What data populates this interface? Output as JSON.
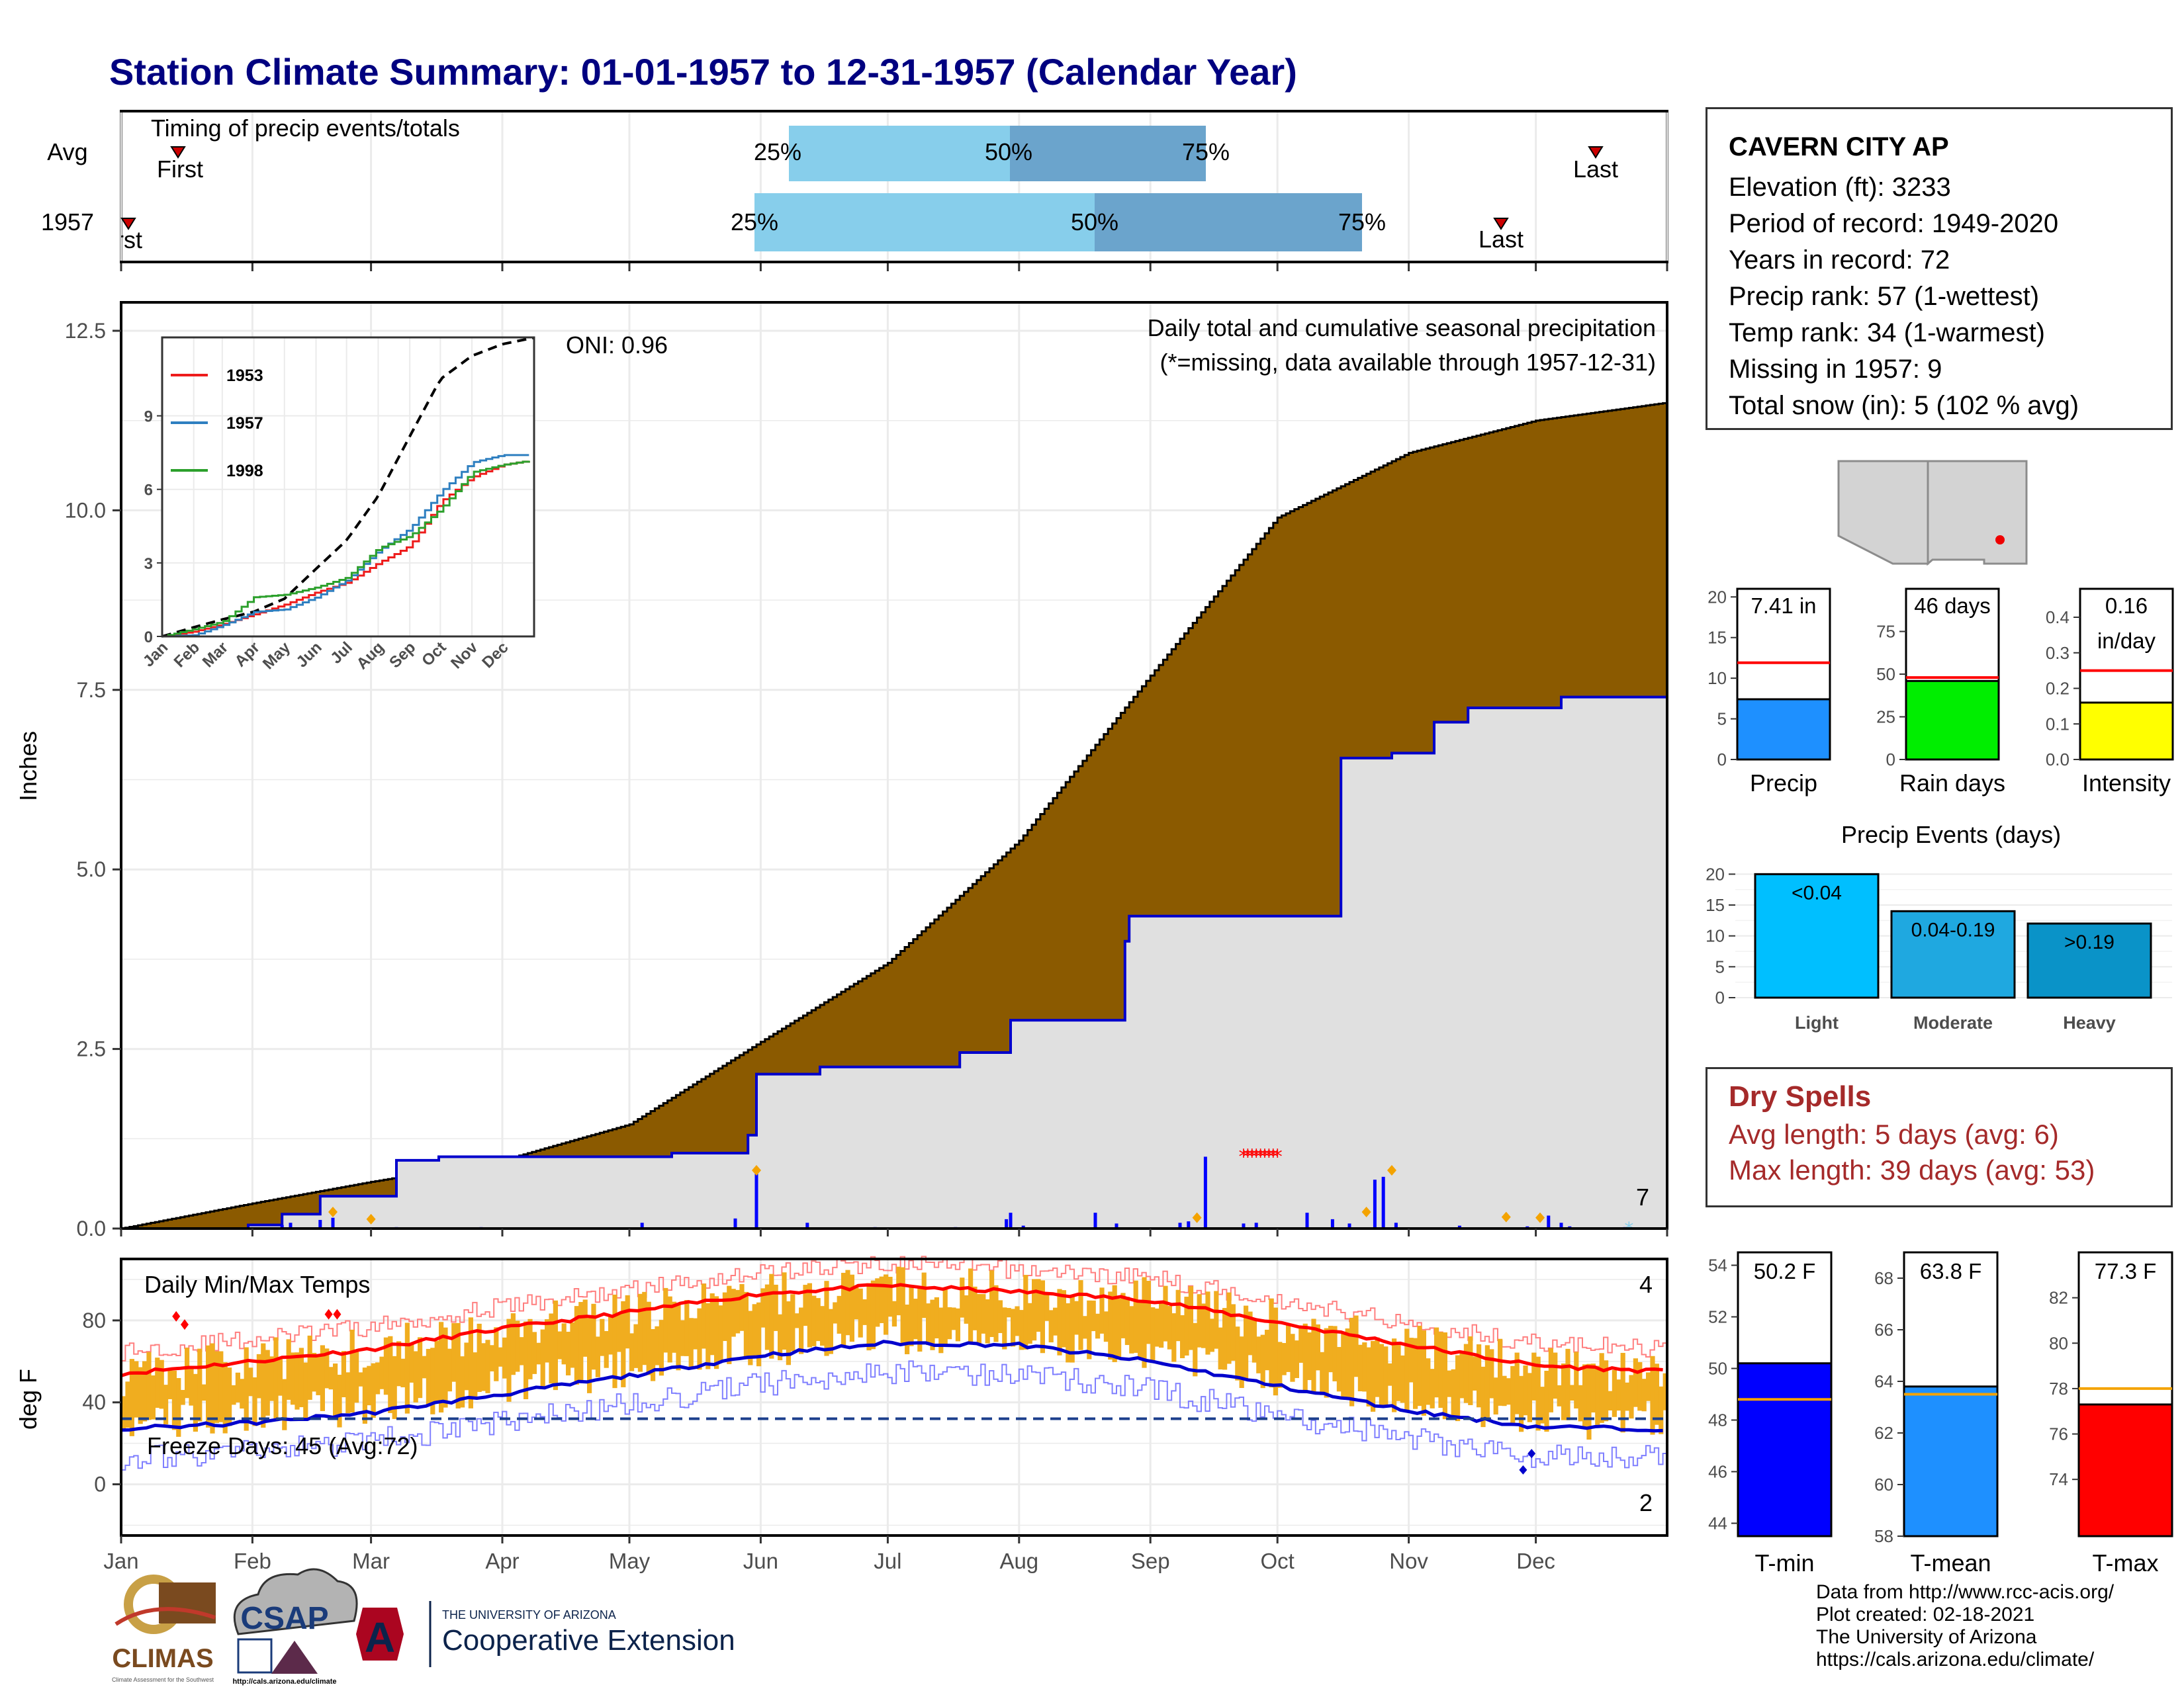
{
  "title": "Station Climate Summary: 01-01-1957 to 12-31-1957 (Calendar Year)",
  "station": {
    "name": "CAVERN CITY AP",
    "lines": [
      "Elevation (ft): 3233",
      "Period of record: 1949-2020",
      "Years in record: 72",
      "Precip rank: 57 (1-wettest)",
      "Temp rank: 34 (1-warmest)",
      "Missing in 1957: 9",
      "Total snow (in): 5 (102 % avg)"
    ]
  },
  "timing_panel": {
    "label": "Timing of precip events/totals",
    "rows": [
      "Avg",
      "1957"
    ],
    "avg": {
      "first": "First",
      "last": "Last",
      "p25": "25%",
      "p50": "50%",
      "p75": "75%"
    },
    "y1957": {
      "first": "First",
      "last": "Last",
      "p25": "25%",
      "p50": "50%",
      "p75": "75%"
    },
    "colors": {
      "light": "#87ceeb",
      "dark": "#6ba4cc",
      "marker": "#cc0000"
    }
  },
  "precip_panel": {
    "ylabel": "Inches",
    "yticks": [
      "0.0",
      "2.5",
      "5.0",
      "7.5",
      "10.0",
      "12.5"
    ],
    "annotation": "Daily total and cumulative seasonal precipitation",
    "missing_note": "(*=missing, data available through 1957-12-31)",
    "oni": "ONI: 0.96",
    "corner_count": "7",
    "colors": {
      "avg_fill": "#8b5a00",
      "year_fill": "#e0e0e0",
      "line": "#0000cc"
    }
  },
  "inset": {
    "yticks": [
      "0",
      "3",
      "6",
      "9"
    ],
    "months": [
      "Jan",
      "Feb",
      "Mar",
      "Apr",
      "May",
      "Jun",
      "Jul",
      "Aug",
      "Sep",
      "Oct",
      "Nov",
      "Dec"
    ],
    "legend": [
      {
        "name": "1953",
        "color": "#ee1c1c"
      },
      {
        "name": "1957",
        "color": "#2e7fc0"
      },
      {
        "name": "1998",
        "color": "#2ca02c"
      }
    ]
  },
  "temp_panel": {
    "ylabel": "deg F",
    "title": "Daily Min/Max Temps",
    "yticks": [
      "0",
      "40",
      "80"
    ],
    "freeze_label": "Freeze Days: 45 (Avg:72)",
    "top_count": "4",
    "bottom_count": "2",
    "months": [
      "Jan",
      "Feb",
      "Mar",
      "Apr",
      "May",
      "Jun",
      "Jul",
      "Aug",
      "Sep",
      "Oct",
      "Nov",
      "Dec"
    ]
  },
  "map": {
    "region": "Arizona / New Mexico"
  },
  "bars_top": [
    {
      "label": "Precip",
      "value_text": "7.41 in",
      "value": 7.41,
      "avg": 11.9,
      "ymax": 21,
      "ticks": [
        "0",
        "5",
        "10",
        "15",
        "20"
      ],
      "color": "#1e90ff"
    },
    {
      "label": "Rain days",
      "value_text": "46 days",
      "value": 46,
      "avg": 48,
      "ymax": 100,
      "ticks": [
        "0",
        "25",
        "50",
        "75"
      ],
      "color": "#00ee00"
    },
    {
      "label": "Intensity",
      "value_text": "0.16",
      "value_text2": "in/day",
      "value": 0.16,
      "avg": 0.25,
      "ymax": 0.48,
      "ticks": [
        "0.0",
        "0.1",
        "0.2",
        "0.3",
        "0.4"
      ],
      "color": "#ffff00"
    }
  ],
  "precip_events": {
    "title": "Precip Events (days)",
    "yticks": [
      "0",
      "5",
      "10",
      "15",
      "20"
    ],
    "bars": [
      {
        "label": "Light",
        "text": "<0.04",
        "value": 20,
        "color": "#00bfff"
      },
      {
        "label": "Moderate",
        "text": "0.04-0.19",
        "value": 14,
        "color": "#1fa8e0"
      },
      {
        "label": "Heavy",
        "text": ">0.19",
        "value": 12,
        "color": "#0a93c8"
      }
    ]
  },
  "dry_spells": {
    "title": "Dry Spells",
    "avg": "Avg length: 5 days (avg: 6)",
    "max": "Max length: 39 days (avg: 53)"
  },
  "temp_bars": [
    {
      "label": "T-min",
      "value_text": "50.2 F",
      "value": 50.2,
      "avg": 48.8,
      "ymin": 43.5,
      "ymax": 54.5,
      "ticks": [
        "44",
        "46",
        "48",
        "50",
        "52",
        "54"
      ],
      "color": "#0000ff"
    },
    {
      "label": "T-mean",
      "value_text": "63.8 F",
      "value": 63.8,
      "avg": 63.5,
      "ymin": 58,
      "ymax": 69,
      "ticks": [
        "58",
        "60",
        "62",
        "64",
        "66",
        "68"
      ],
      "color": "#1e90ff"
    },
    {
      "label": "T-max",
      "value_text": "77.3 F",
      "value": 77.3,
      "avg": 78,
      "ymin": 71.5,
      "ymax": 84,
      "ticks": [
        "74",
        "76",
        "78",
        "80",
        "82"
      ],
      "color": "#ff0000"
    }
  ],
  "footer": [
    "Data from http://www.rcc-acis.org/",
    "Plot created: 02-18-2021",
    "The University of Arizona",
    "https://cals.arizona.edu/climate/"
  ],
  "logos": {
    "climas": "CLIMAS",
    "climas_sub": "Climate Assessment for the Southwest",
    "csap": "CSAP",
    "csap_url": "http://cals.arizona.edu/climate",
    "ua_top": "THE UNIVERSITY OF ARIZONA",
    "ua_bottom": "Cooperative Extension"
  },
  "chart_data": [
    {
      "type": "area",
      "title": "Daily total and cumulative seasonal precipitation",
      "ylabel": "Inches",
      "ylim": [
        0,
        12.5
      ],
      "x": [
        "Jan",
        "Feb",
        "Mar",
        "Apr",
        "May",
        "Jun",
        "Jul",
        "Aug",
        "Sep",
        "Oct",
        "Nov",
        "Dec",
        "Dec31"
      ],
      "series": [
        {
          "values": [
            0.0,
            0.35,
            0.65,
            0.95,
            1.45,
            2.6,
            3.7,
            5.4,
            7.7,
            9.9,
            10.8,
            11.25,
            11.5
          ]
        },
        {
          "values": [
            0.0,
            0.05,
            0.45,
            1.0,
            1.05,
            1.3,
            2.25,
            2.9,
            4.35,
            4.35,
            6.55,
            7.25,
            7.4
          ]
        }
      ]
    },
    {
      "type": "line",
      "title": "Daily Min/Max Temps",
      "ylabel": "deg F",
      "ylim": [
        -25,
        110
      ],
      "x": [
        "Jan",
        "Feb",
        "Mar",
        "Apr",
        "May",
        "Jun",
        "Jul",
        "Aug",
        "Sep",
        "Oct",
        "Nov",
        "Dec",
        "Dec31"
      ],
      "series": [
        {
          "values": [
            54,
            60,
            66,
            76,
            84,
            93,
            97,
            94,
            90,
            79,
            68,
            58,
            55
          ]
        },
        {
          "values": [
            27,
            30,
            35,
            44,
            53,
            63,
            69,
            68,
            60,
            48,
            36,
            28,
            27
          ]
        }
      ]
    },
    {
      "type": "line",
      "x": [
        "Jan",
        "Feb",
        "Mar",
        "Apr",
        "May",
        "Jun",
        "Jul",
        "Aug",
        "Sep",
        "Oct",
        "Nov",
        "Dec",
        "Dec31"
      ],
      "ylim": [
        0,
        12.5
      ],
      "series": [
        {
          "name": "1953",
          "values": [
            0,
            0.2,
            0.5,
            0.9,
            1.3,
            1.8,
            2.2,
            3.0,
            3.7,
            5.5,
            6.5,
            7.0,
            7.2
          ]
        },
        {
          "name": "1957",
          "values": [
            0,
            0.05,
            0.45,
            1.0,
            1.1,
            1.6,
            2.3,
            3.5,
            4.4,
            5.9,
            7.1,
            7.4,
            7.4
          ]
        },
        {
          "name": "1998",
          "values": [
            0,
            0.3,
            0.6,
            1.6,
            1.7,
            2.0,
            2.4,
            3.6,
            4.1,
            5.2,
            6.7,
            7.0,
            7.2
          ]
        }
      ]
    }
  ]
}
